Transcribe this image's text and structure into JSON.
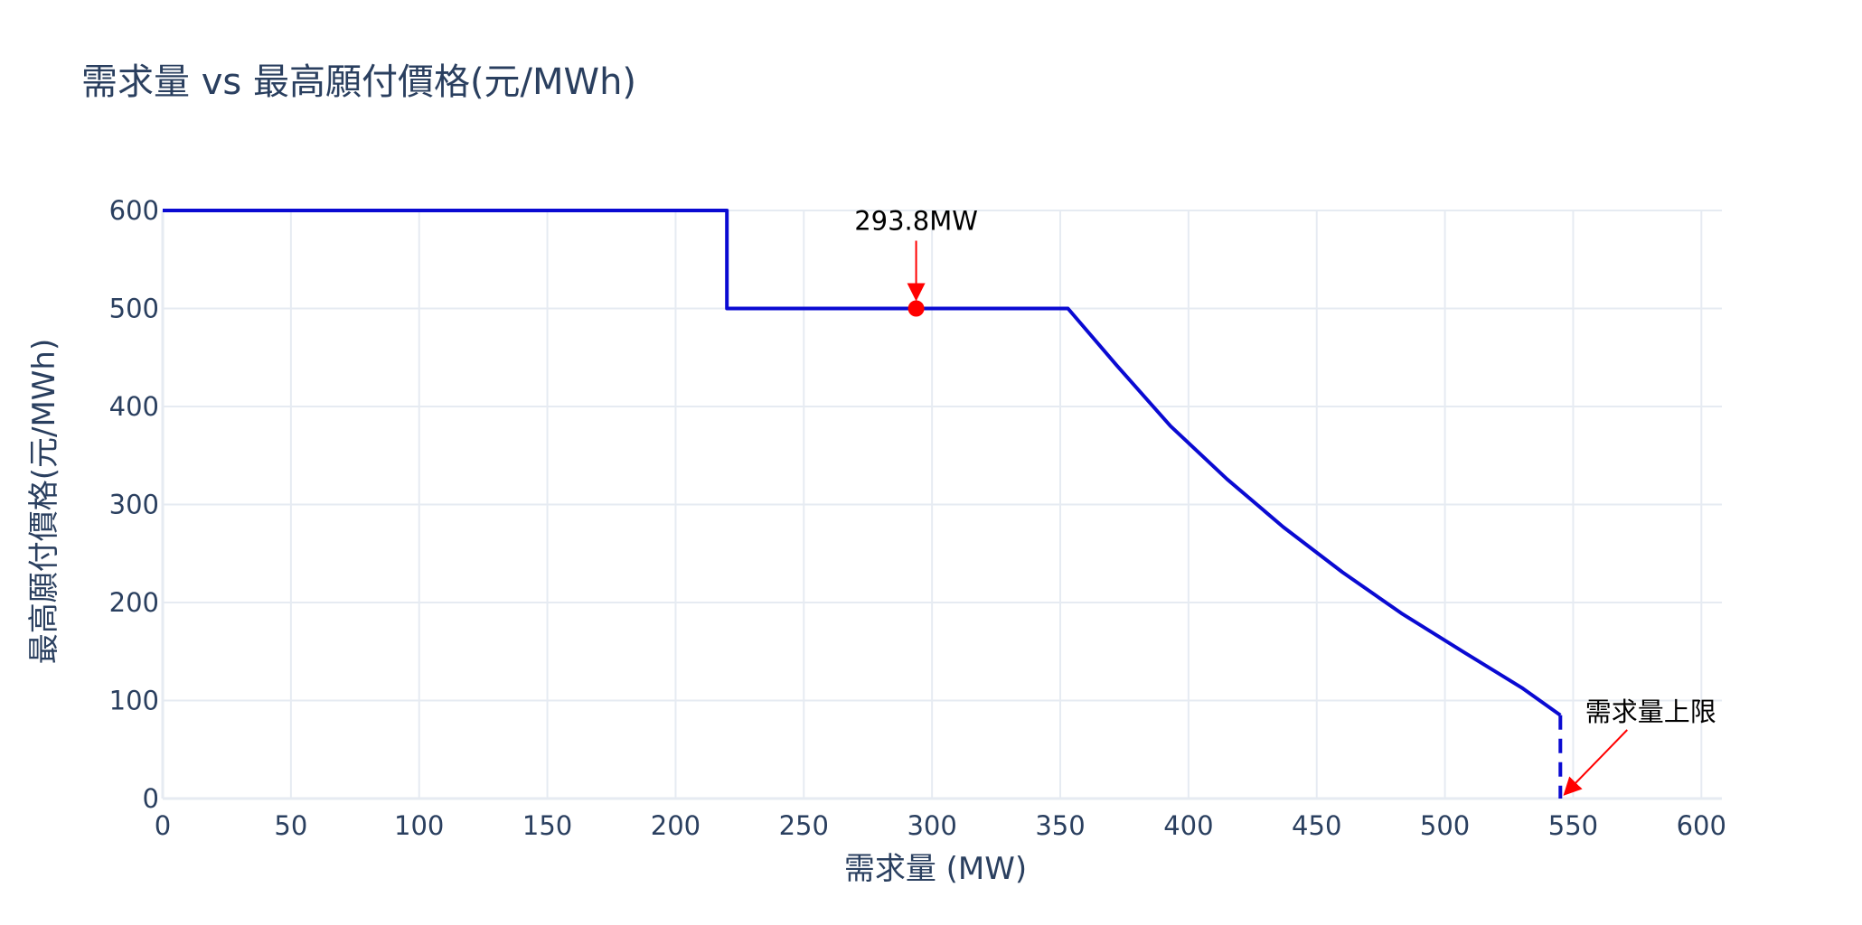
{
  "chart_data": {
    "type": "line",
    "title": "需求量 vs 最高願付價格(元/MWh)",
    "xlabel": "需求量 (MW)",
    "ylabel": "最高願付價格(元/MWh)",
    "xlim": [
      0,
      608
    ],
    "ylim": [
      0,
      600
    ],
    "xticks": [
      0,
      50,
      100,
      150,
      200,
      250,
      300,
      350,
      400,
      450,
      500,
      550,
      600
    ],
    "yticks": [
      0,
      100,
      200,
      300,
      400,
      500,
      600
    ],
    "grid": true,
    "legend": "none",
    "series": [
      {
        "style": "solid",
        "color": "#0a0ad2",
        "x": [
          0,
          220,
          220,
          353,
          372,
          393,
          415,
          437,
          460,
          483,
          507,
          530,
          545
        ],
        "y": [
          600,
          600,
          500,
          500,
          442,
          380,
          326,
          277,
          231,
          189,
          150,
          113,
          85
        ]
      },
      {
        "style": "dashed",
        "color": "#0a0ad2",
        "x": [
          545,
          545
        ],
        "y": [
          85,
          0
        ]
      }
    ],
    "marker": {
      "x": 293.8,
      "y": 500,
      "color": "#ff0000"
    },
    "annotations": [
      {
        "text": "293.8MW",
        "x": 293.8,
        "y": 500,
        "arrow_color": "#ff0000"
      },
      {
        "text": "需求量上限",
        "x": 545,
        "y": 0,
        "arrow_color": "#ff0000"
      }
    ]
  }
}
